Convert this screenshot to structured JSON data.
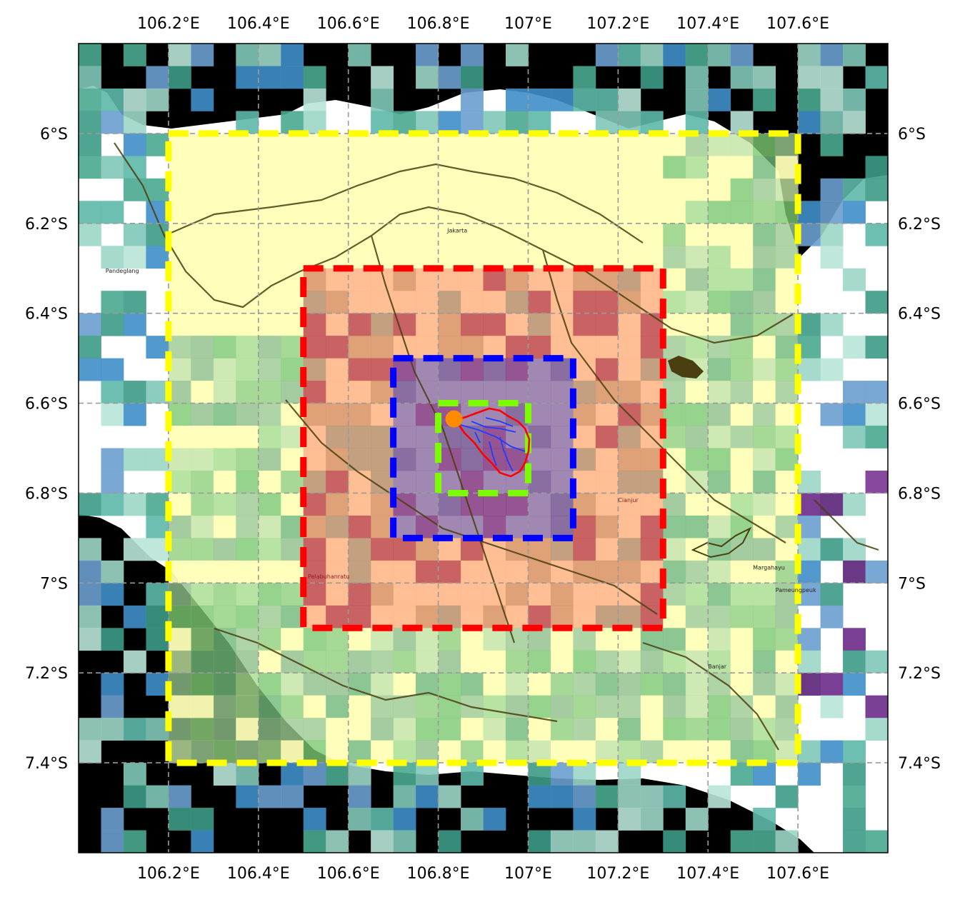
{
  "map": {
    "lon_ticks": [
      "106.2°E",
      "106.4°E",
      "106.6°E",
      "106.8°E",
      "107°E",
      "107.2°E",
      "107.4°E",
      "107.6°E"
    ],
    "lon_values": [
      106.2,
      106.4,
      106.6,
      106.8,
      107.0,
      107.2,
      107.4,
      107.6
    ],
    "lat_ticks": [
      "6°S",
      "6.2°S",
      "6.4°S",
      "6.6°S",
      "6.8°S",
      "7°S",
      "7.2°S",
      "7.4°S"
    ],
    "lat_values": [
      -6.0,
      -6.2,
      -6.4,
      -6.6,
      -6.8,
      -7.0,
      -7.2,
      -7.4
    ],
    "extent": {
      "lon_min": 106.0,
      "lon_max": 107.8,
      "lat_max": -5.8,
      "lat_min": -7.6
    },
    "grid_lines": true,
    "colors": {
      "sea": "#000000",
      "land": "#ffffff",
      "yellow_domain": "#ffff00",
      "red_domain": "#ff0000",
      "blue_domain": "#0000ff",
      "green_domain": "#7cfc00",
      "outlet": "#ff8c00",
      "rivers": "#1f3cff",
      "catchment": "#ff0000"
    },
    "domains": [
      {
        "name": "outer-domain",
        "color": "#ffff00",
        "lon": [
          106.2,
          107.6
        ],
        "lat": [
          -7.4,
          -6.0
        ]
      },
      {
        "name": "middle-domain",
        "color": "#ff0000",
        "lon": [
          106.5,
          107.3
        ],
        "lat": [
          -7.1,
          -6.3
        ]
      },
      {
        "name": "inner-domain",
        "color": "#0000ff",
        "lon": [
          106.7,
          107.1
        ],
        "lat": [
          -6.9,
          -6.5
        ]
      },
      {
        "name": "catchment-domain",
        "color": "#7cfc00",
        "lon": [
          106.8,
          107.0
        ],
        "lat": [
          -6.8,
          -6.6
        ]
      }
    ],
    "outlet_point": {
      "lon": 106.835,
      "lat": -6.635
    },
    "place_labels": [
      {
        "text": "Pandeglang",
        "lon": 106.06,
        "lat": -6.31,
        "style": "place"
      },
      {
        "text": "Jakarta",
        "lon": 106.82,
        "lat": -6.22,
        "style": "place"
      },
      {
        "text": "Cianjur",
        "lon": 107.2,
        "lat": -6.82,
        "style": "place-red"
      },
      {
        "text": "Pelabuhanratu",
        "lon": 106.51,
        "lat": -6.99,
        "style": "place-red"
      },
      {
        "text": "Margahayu",
        "lon": 107.5,
        "lat": -6.97,
        "style": "place"
      },
      {
        "text": "Pameungpeuk",
        "lon": 107.55,
        "lat": -7.02,
        "style": "place"
      },
      {
        "text": "Banjar",
        "lon": 107.4,
        "lat": -7.19,
        "style": "place"
      }
    ]
  }
}
